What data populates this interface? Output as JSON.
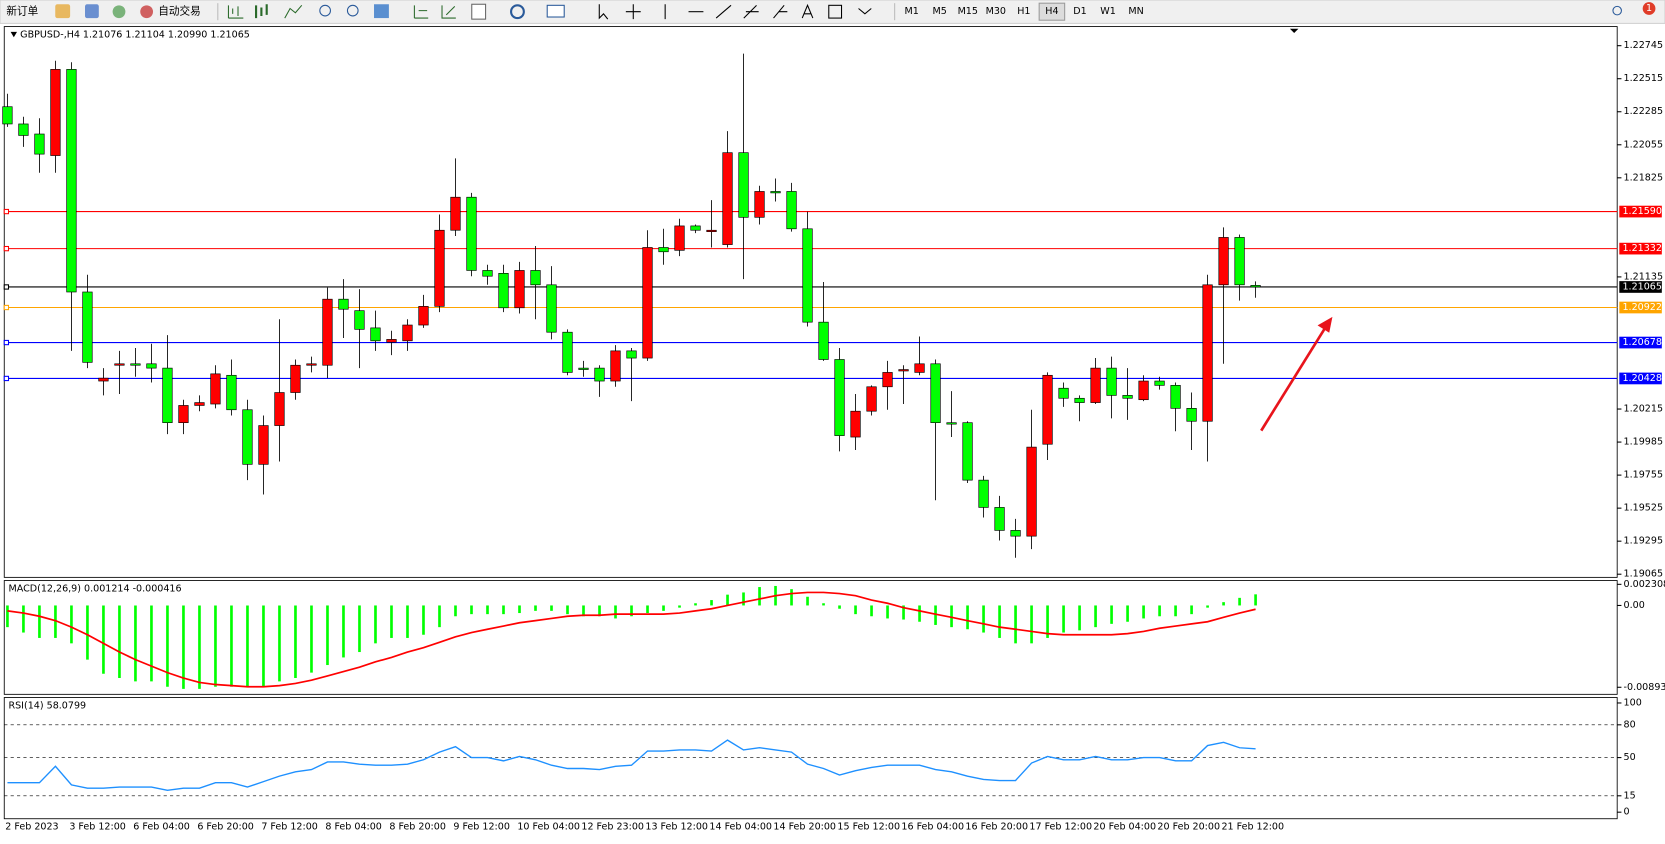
{
  "toolbar": {
    "new_order": "新订单",
    "auto_trading": "自动交易",
    "timeframes": [
      "M1",
      "M5",
      "M15",
      "M30",
      "H1",
      "H4",
      "D1",
      "W1",
      "MN"
    ],
    "notifications": "1"
  },
  "chart_data": [
    {
      "type": "candlestick",
      "title": "GBPUSD-,H4",
      "ohlc_label": "1.21076 1.21104 1.20990 1.21065",
      "categories": [
        "2 Feb 2023",
        null,
        null,
        null,
        "3 Feb 12:00",
        null,
        null,
        null,
        "6 Feb 04:00",
        null,
        null,
        null,
        "6 Feb 20:00",
        null,
        null,
        null,
        "7 Feb 12:00",
        null,
        null,
        null,
        "8 Feb 04:00",
        null,
        null,
        null,
        "8 Feb 20:00",
        null,
        null,
        null,
        "9 Feb 12:00",
        null,
        null,
        null,
        "10 Feb 04:00",
        null,
        null,
        null,
        "12 Feb 23:00",
        null,
        null,
        null,
        "13 Feb 12:00",
        null,
        null,
        null,
        "14 Feb 04:00",
        null,
        null,
        null,
        "14 Feb 20:00",
        null,
        null,
        null,
        "15 Feb 12:00",
        null,
        null,
        null,
        "16 Feb 04:00",
        null,
        null,
        null,
        "16 Feb 20:00",
        null,
        null,
        null,
        "17 Feb 12:00",
        null,
        null,
        null,
        "20 Feb 04:00",
        null,
        null,
        null,
        "20 Feb 20:00",
        null,
        null,
        null,
        "21 Feb 12:00",
        null,
        null
      ],
      "open": [
        1.2232,
        1.222,
        1.2213,
        1.2198,
        1.2258,
        1.2103,
        1.2041,
        1.2052,
        1.2053,
        1.2053,
        1.205,
        1.2012,
        1.2024,
        1.2025,
        1.2045,
        1.2021,
        1.1983,
        1.201,
        1.2033,
        1.2052,
        1.2052,
        1.2098,
        1.209,
        1.2078,
        1.2068,
        1.2069,
        1.208,
        1.2093,
        1.2146,
        1.2169,
        1.2118,
        1.2116,
        1.2092,
        1.2118,
        1.2108,
        1.2075,
        1.205,
        1.205,
        1.2041,
        1.2062,
        1.2057,
        1.2134,
        1.2132,
        1.2149,
        1.2145,
        1.2136,
        1.22,
        1.2155,
        1.2173,
        1.2173,
        1.2147,
        1.2082,
        1.2056,
        1.2002,
        1.202,
        1.2037,
        1.2048,
        1.2047,
        1.2053,
        1.2012,
        1.2012,
        1.1972,
        1.1953,
        1.1937,
        1.1933,
        1.1997,
        1.2036,
        1.2029,
        1.2026,
        1.205,
        1.2031,
        1.2028,
        1.2041,
        1.2038,
        1.2022,
        1.2013,
        1.2108,
        1.2141,
        1.21076
      ],
      "high": [
        1.2241,
        1.2225,
        1.2224,
        1.2264,
        1.2263,
        1.2115,
        1.205,
        1.2062,
        1.2064,
        1.2067,
        1.2073,
        1.2028,
        1.2031,
        1.2052,
        1.2056,
        1.2028,
        1.2017,
        1.2084,
        1.2056,
        1.2058,
        1.2106,
        1.2112,
        1.2105,
        1.209,
        1.2076,
        1.2084,
        1.2101,
        1.2157,
        1.2196,
        1.2172,
        1.2122,
        1.2122,
        1.2124,
        1.2135,
        1.2121,
        1.2077,
        1.2055,
        1.2052,
        1.2066,
        1.2064,
        1.2146,
        1.2147,
        1.2154,
        1.215,
        1.2167,
        1.2215,
        1.2269,
        1.2177,
        1.2182,
        1.2179,
        1.2159,
        1.211,
        1.2064,
        1.2032,
        1.2038,
        1.2055,
        1.2052,
        1.2072,
        1.2056,
        1.2034,
        1.2013,
        1.1975,
        1.1961,
        1.1945,
        1.2021,
        1.2047,
        1.204,
        1.2031,
        1.2057,
        1.2058,
        1.205,
        1.2045,
        1.2044,
        1.204,
        1.2033,
        1.2115,
        1.2148,
        1.2143,
        1.21104
      ],
      "low": [
        1.2218,
        1.2204,
        1.2186,
        1.2186,
        1.2062,
        1.205,
        1.2031,
        1.2032,
        1.2044,
        1.204,
        1.2004,
        1.2004,
        1.202,
        1.2022,
        1.2017,
        1.1972,
        1.1962,
        1.1985,
        1.2028,
        1.2047,
        1.2043,
        1.2071,
        1.205,
        1.2062,
        1.2059,
        1.2062,
        1.2078,
        1.2089,
        1.2142,
        1.2114,
        1.2108,
        1.2089,
        1.2088,
        1.2084,
        1.207,
        1.2045,
        1.2044,
        1.203,
        1.2037,
        1.2027,
        1.2055,
        1.2122,
        1.2128,
        1.2144,
        1.2134,
        1.2134,
        1.2112,
        1.215,
        1.2166,
        1.2145,
        1.2079,
        1.2055,
        1.1992,
        1.1993,
        1.2017,
        1.2021,
        1.2025,
        1.2045,
        1.1958,
        1.2002,
        1.197,
        1.1946,
        1.193,
        1.1918,
        1.1924,
        1.1986,
        1.2023,
        1.2013,
        1.2025,
        1.2015,
        1.2014,
        1.2027,
        1.2035,
        1.2006,
        1.1993,
        1.1985,
        1.2053,
        1.2097,
        1.2099
      ],
      "close": [
        1.222,
        1.2212,
        1.2199,
        1.2258,
        1.2103,
        1.2054,
        1.2043,
        1.2053,
        1.2052,
        1.205,
        1.2012,
        1.2024,
        1.2026,
        1.2046,
        1.2021,
        1.1983,
        1.201,
        1.2033,
        1.2052,
        1.2053,
        1.2098,
        1.2091,
        1.2077,
        1.2069,
        1.207,
        1.208,
        1.2093,
        1.2146,
        1.2169,
        1.2118,
        1.2114,
        1.2092,
        1.2118,
        1.2108,
        1.2075,
        1.2047,
        1.2049,
        1.2041,
        1.2062,
        1.2057,
        1.2134,
        1.2131,
        1.2149,
        1.2146,
        1.2146,
        1.22,
        1.2155,
        1.2173,
        1.2172,
        1.2147,
        1.2082,
        1.2056,
        1.2003,
        1.202,
        1.2037,
        1.2047,
        1.2049,
        1.2053,
        1.2012,
        1.2011,
        1.1972,
        1.1953,
        1.1937,
        1.1933,
        1.1995,
        1.2045,
        1.2029,
        1.2026,
        1.205,
        1.2031,
        1.2029,
        1.2041,
        1.2038,
        1.2022,
        1.2013,
        1.2108,
        1.2141,
        1.2108,
        1.21065
      ],
      "up_color": "#ff0000",
      "down_color": "#00ff00",
      "ylim": [
        1.19043,
        1.22878
      ],
      "yticks": [
        1.22745,
        1.22515,
        1.22285,
        1.22055,
        1.21825,
        1.21135,
        1.20215,
        1.19985,
        1.19755,
        1.19525,
        1.19295,
        1.19065
      ],
      "levels": [
        {
          "value": 1.2159,
          "label": "1.21590",
          "color": "#ff0000"
        },
        {
          "value": 1.21332,
          "color": "#ff0000"
        },
        {
          "value": 1.21065,
          "color": "#000000"
        },
        {
          "value": 1.20922,
          "color": "#ffa500"
        },
        {
          "value": 1.20678,
          "color": "#0000ff"
        },
        {
          "value": 1.20428,
          "color": "#0000ff"
        }
      ]
    },
    {
      "type": "macd",
      "title": "MACD(12,26,9) 0.001214 -0.000416",
      "ylim": [
        -0.00971,
        0.00272
      ],
      "yticks": [
        0.002308,
        {
          "value": 0,
          "label": "0.00"
        },
        -0.008939
      ],
      "series": [
        {
          "type": "bar",
          "color": "#00ff00",
          "values": [
            -0.00237,
            -0.00296,
            -0.00355,
            -0.00355,
            -0.00414,
            -0.00592,
            -0.00746,
            -0.00793,
            -0.00829,
            -0.00829,
            -0.00888,
            -0.00912,
            -0.00912,
            -0.00888,
            -0.00888,
            -0.00888,
            -0.00888,
            -0.00829,
            -0.00793,
            -0.00734,
            -0.00651,
            -0.00568,
            -0.00509,
            -0.00414,
            -0.00355,
            -0.00355,
            -0.0032,
            -0.00237,
            -0.00118,
            -0.00095,
            -0.00095,
            -0.00095,
            -0.00083,
            -0.00059,
            -0.00059,
            -0.00095,
            -0.00118,
            -0.00118,
            -0.00142,
            -0.00118,
            -0.00083,
            -0.00059,
            -0.00024,
            0.00024,
            0.00059,
            0.00118,
            0.00142,
            0.00201,
            0.00213,
            0.00178,
            0.00095,
            0.00024,
            -0.00036,
            -0.00095,
            -0.00118,
            -0.00142,
            -0.00154,
            -0.00178,
            -0.00213,
            -0.00237,
            -0.0026,
            -0.00296,
            -0.00355,
            -0.00414,
            -0.00414,
            -0.00355,
            -0.00296,
            -0.00272,
            -0.00237,
            -0.00201,
            -0.00178,
            -0.00142,
            -0.00118,
            -0.00118,
            -0.00095,
            -0.00024,
            0.00036,
            0.00083,
            0.001214
          ]
        },
        {
          "type": "line",
          "color": "#ff0000",
          "values": [
            -0.00059,
            -0.00083,
            -0.00118,
            -0.00166,
            -0.00237,
            -0.0032,
            -0.00414,
            -0.00509,
            -0.00592,
            -0.00663,
            -0.00734,
            -0.00793,
            -0.00841,
            -0.00864,
            -0.00876,
            -0.00888,
            -0.00888,
            -0.00876,
            -0.00852,
            -0.00817,
            -0.0077,
            -0.00722,
            -0.00675,
            -0.00616,
            -0.00568,
            -0.00509,
            -0.00462,
            -0.00403,
            -0.00343,
            -0.00296,
            -0.0026,
            -0.00225,
            -0.00189,
            -0.00166,
            -0.00142,
            -0.00118,
            -0.00107,
            -0.00107,
            -0.00095,
            -0.00095,
            -0.00095,
            -0.00095,
            -0.00083,
            -0.00059,
            -0.00036,
            0,
            0.00036,
            0.00071,
            0.00107,
            0.0013,
            0.00142,
            0.00142,
            0.0013,
            0.00107,
            0.00059,
            0.00024,
            -0.00024,
            -0.00059,
            -0.00095,
            -0.0013,
            -0.00166,
            -0.00201,
            -0.00237,
            -0.0026,
            -0.00284,
            -0.00308,
            -0.0032,
            -0.0032,
            -0.0032,
            -0.0032,
            -0.00308,
            -0.00284,
            -0.00249,
            -0.00225,
            -0.00201,
            -0.00178,
            -0.0013,
            -0.00083,
            -0.000416
          ]
        }
      ]
    },
    {
      "type": "line",
      "title": "RSI(14) 58.0799",
      "color": "#1e90ff",
      "values": [
        27,
        27,
        27,
        42,
        25,
        22,
        22,
        23,
        23,
        23,
        20,
        22,
        22,
        27,
        27,
        23,
        28,
        33,
        37,
        39,
        46,
        46,
        44,
        43,
        43,
        44,
        48,
        55,
        60,
        50,
        50,
        47,
        51,
        48,
        43,
        40,
        40,
        39,
        42,
        43,
        56,
        56,
        57,
        57,
        56,
        66,
        57,
        59,
        57,
        55,
        44,
        40,
        34,
        38,
        41,
        43,
        43,
        43,
        39,
        37,
        33,
        30,
        29,
        29,
        45,
        51,
        48,
        48,
        51,
        48,
        48,
        50,
        50,
        47,
        47,
        61,
        64,
        59,
        58.0799
      ],
      "ylim": [
        -6,
        105
      ],
      "yticks": [
        100,
        80,
        50,
        15,
        0
      ],
      "levels": [
        80,
        50,
        15
      ]
    }
  ]
}
